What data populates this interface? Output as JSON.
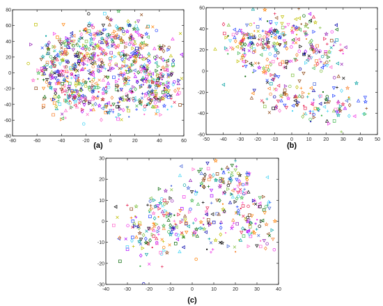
{
  "chart_data": [
    {
      "type": "scatter",
      "panel_label": "(a)",
      "title": "",
      "xlabel": "",
      "ylabel": "",
      "xlim": [
        -80,
        60
      ],
      "ylim": [
        -80,
        80
      ],
      "xticks": [
        "-80",
        "-60",
        "-40",
        "-20",
        "0",
        "20",
        "40",
        "60"
      ],
      "yticks": [
        "-80",
        "-60",
        "-40",
        "-20",
        "0",
        "20",
        "40",
        "60",
        "80"
      ],
      "grid": false,
      "legend": "none",
      "point_count": 900,
      "seed": 11,
      "clusters": [
        {
          "cx": -25,
          "cy": 35,
          "sx": 14,
          "sy": 12
        },
        {
          "cx": 10,
          "cy": 45,
          "sx": 15,
          "sy": 12
        },
        {
          "cx": -45,
          "cy": 5,
          "sx": 10,
          "sy": 15
        },
        {
          "cx": -10,
          "cy": 5,
          "sx": 15,
          "sy": 15
        },
        {
          "cx": 25,
          "cy": 10,
          "sx": 15,
          "sy": 15
        },
        {
          "cx": -30,
          "cy": -30,
          "sx": 14,
          "sy": 12
        },
        {
          "cx": 10,
          "cy": -35,
          "sx": 17,
          "sy": 13
        },
        {
          "cx": 40,
          "cy": -20,
          "sx": 10,
          "sy": 14
        }
      ]
    },
    {
      "type": "scatter",
      "panel_label": "(b)",
      "title": "",
      "xlabel": "",
      "ylabel": "",
      "xlim": [
        -50,
        50
      ],
      "ylim": [
        -60,
        60
      ],
      "xticks": [
        "-50",
        "-40",
        "-30",
        "-20",
        "-10",
        "0",
        "10",
        "20",
        "30",
        "40",
        "50"
      ],
      "yticks": [
        "-60",
        "-40",
        "-20",
        "0",
        "20",
        "40",
        "60"
      ],
      "grid": false,
      "legend": "none",
      "point_count": 420,
      "seed": 23,
      "clusters": [
        {
          "cx": -25,
          "cy": 30,
          "sx": 10,
          "sy": 9
        },
        {
          "cx": 0,
          "cy": 40,
          "sx": 10,
          "sy": 9
        },
        {
          "cx": -15,
          "cy": 5,
          "sx": 10,
          "sy": 12
        },
        {
          "cx": 15,
          "cy": 15,
          "sx": 10,
          "sy": 10
        },
        {
          "cx": 0,
          "cy": -25,
          "sx": 12,
          "sy": 10
        },
        {
          "cx": 20,
          "cy": -35,
          "sx": 10,
          "sy": 10
        }
      ]
    },
    {
      "type": "scatter",
      "panel_label": "(c)",
      "title": "",
      "xlabel": "",
      "ylabel": "",
      "xlim": [
        -40,
        40
      ],
      "ylim": [
        -30,
        30
      ],
      "xticks": [
        "-40",
        "-30",
        "-20",
        "-10",
        "0",
        "10",
        "20",
        "30",
        "40"
      ],
      "yticks": [
        "-30",
        "-20",
        "-10",
        "0",
        "10",
        "20",
        "30"
      ],
      "grid": false,
      "legend": "none",
      "point_count": 380,
      "seed": 37,
      "clusters": [
        {
          "cx": -22,
          "cy": -8,
          "sx": 7,
          "sy": 7
        },
        {
          "cx": -10,
          "cy": 2,
          "sx": 8,
          "sy": 8
        },
        {
          "cx": 5,
          "cy": -2,
          "sx": 8,
          "sy": 9
        },
        {
          "cx": 20,
          "cy": 12,
          "sx": 7,
          "sy": 7
        },
        {
          "cx": 28,
          "cy": -2,
          "sx": 5,
          "sy": 8
        },
        {
          "cx": 12,
          "cy": 20,
          "sx": 7,
          "sy": 5
        }
      ]
    }
  ],
  "colors": [
    "#e6194b",
    "#3cb44b",
    "#4363d8",
    "#f58231",
    "#911eb4",
    "#42d4f4",
    "#f032e6",
    "#006400",
    "#ff7f00",
    "#1f3fff",
    "#bfbf00",
    "#000000",
    "#00a0a0",
    "#8b4513",
    "#ff66cc",
    "#7fbf3f",
    "#0000aa",
    "#aa00ff"
  ],
  "markers": [
    "circle",
    "square",
    "diamond",
    "triangle-up",
    "triangle-down",
    "plus",
    "cross",
    "star",
    "dot",
    "triangle-left",
    "triangle-right"
  ]
}
